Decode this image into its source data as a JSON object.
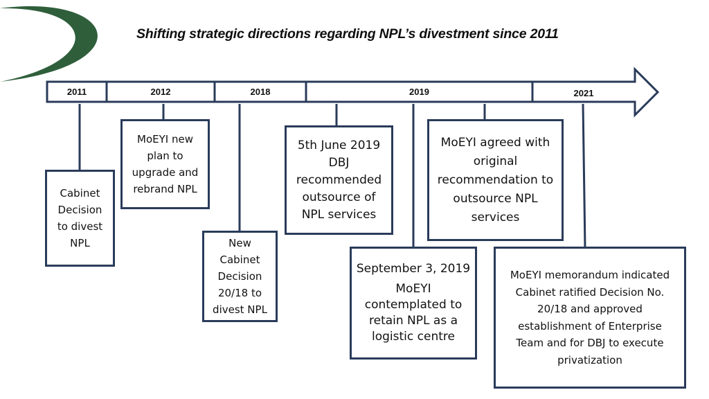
{
  "title": "Shifting strategic directions regarding NPL’s divestment since 2011",
  "colors": {
    "frame": "#2a3b5a",
    "logo_green": "#2f5e3b"
  },
  "years": [
    "2011",
    "2012",
    "2018",
    "2019",
    "2021"
  ],
  "events": {
    "cabinet_2011": "Cabinet\nDecision\nto divest\nNPL",
    "moeyi_2012": "MoEYI new\nplan to\nupgrade and\nrebrand NPL",
    "cabinet_2018": "New\nCabinet\nDecision\n20/18 to\ndivest NPL",
    "dbj_2019_date": "5th June 2019",
    "dbj_2019_text": "DBJ\nrecommended\noutsource of\nNPL services",
    "sep_2019_date": "September 3, 2019",
    "sep_2019_text": "MoEYI\ncontemplated to\nretain NPL as a\nlogistic centre",
    "moeyi_agreed": "MoEYI agreed with\noriginal\nrecommendation to\noutsource NPL\nservices",
    "moeyi_2021": "MoEYI memorandum indicated\nCabinet ratified Decision No.\n20/18 and approved\nestablishment of Enterprise\nTeam and for DBJ to execute\nprivatization"
  }
}
